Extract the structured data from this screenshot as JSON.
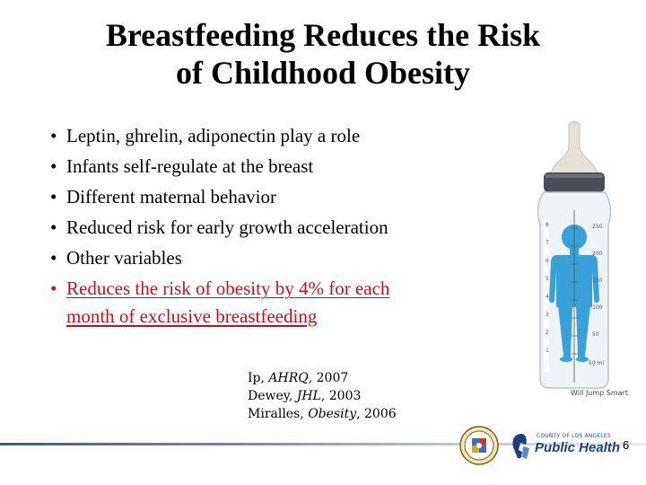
{
  "slide": {
    "title_line1": "Breastfeeding Reduces the Risk",
    "title_line2": "of Childhood Obesity",
    "bullet_glyph": "•",
    "bullets": [
      "Leptin, ghrelin, adiponectin play a role",
      "Infants self-regulate at the breast",
      "Different maternal behavior",
      "Reduced risk for early growth acceleration",
      "Other variables"
    ],
    "highlight_bullet_line1": "Reduces the risk of obesity by 4% for each",
    "highlight_bullet_line2": "month of exclusive breastfeeding",
    "highlight_color": "#c1121c",
    "references": [
      {
        "author": "Ip, ",
        "source": "AHRQ",
        "year": ", 2007"
      },
      {
        "author": "Dewey, ",
        "source": "JHL",
        "year": ", 2003"
      },
      {
        "author": "Miralles, ",
        "source": "Obesity",
        "year": ", 2006"
      }
    ],
    "image_credit": "Will Jump Smart",
    "bottle_scale_right": [
      "250",
      "200",
      "150",
      "100",
      "50",
      "50 ml"
    ],
    "bottle_scale_left": [
      "8",
      "7",
      "6",
      "5",
      "4",
      "3",
      "2",
      "1"
    ],
    "footer": {
      "logo_subtitle": "COUNTY OF LOS ANGELES",
      "logo_title": "Public Health",
      "page_number": "6"
    }
  }
}
